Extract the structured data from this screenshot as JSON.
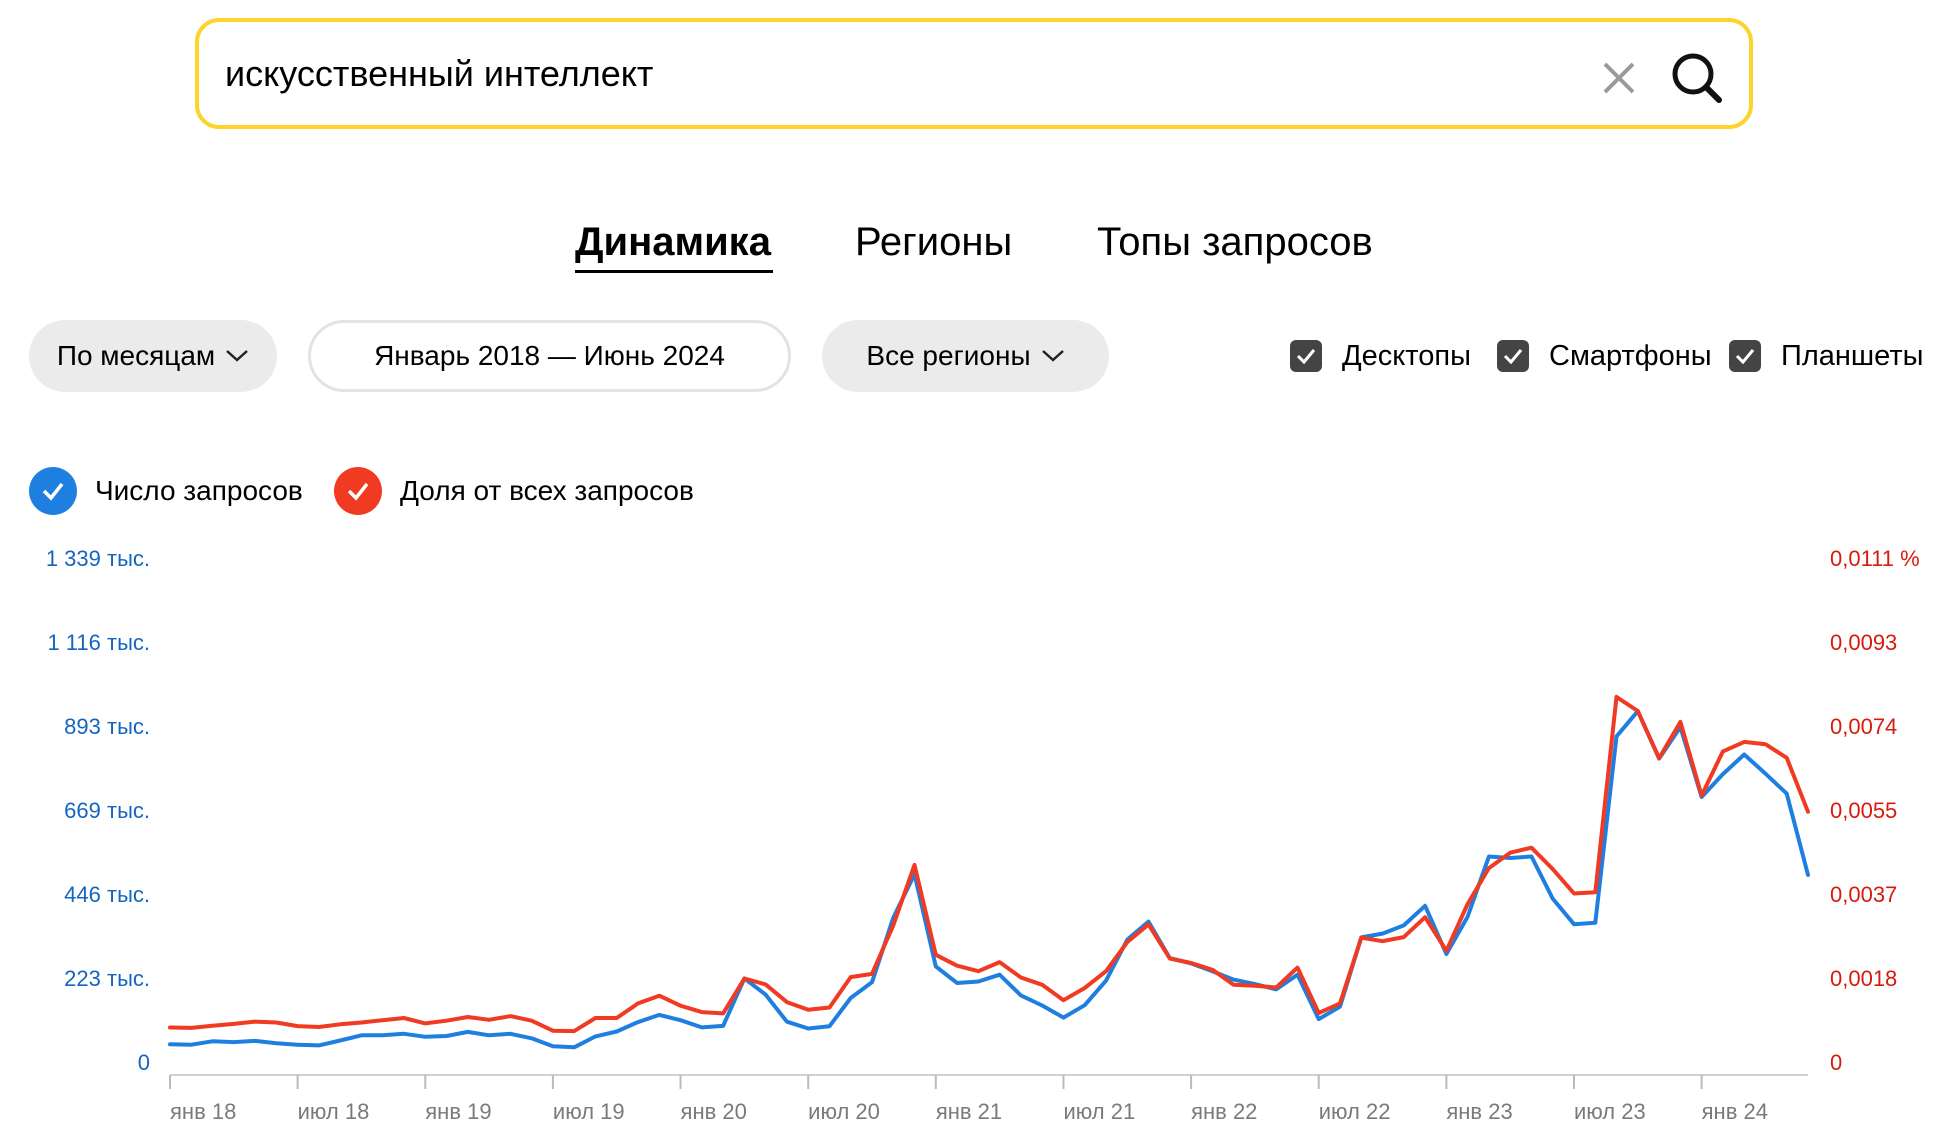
{
  "search": {
    "query": "искусственный интеллект"
  },
  "tabs": [
    {
      "label": "Динамика",
      "active": true
    },
    {
      "label": "Регионы",
      "active": false
    },
    {
      "label": "Топы запросов",
      "active": false
    }
  ],
  "filters": {
    "period": "По месяцам",
    "date_range": "Январь 2018 — Июнь 2024",
    "region": "Все регионы"
  },
  "devices": [
    {
      "label": "Десктопы",
      "checked": true
    },
    {
      "label": "Смартфоны",
      "checked": true
    },
    {
      "label": "Планшеты",
      "checked": true
    }
  ],
  "legend": [
    {
      "label": "Число запросов",
      "color": "#1f7fe0",
      "checked": true
    },
    {
      "label": "Доля от всех запросов",
      "color": "#f03a21",
      "checked": true
    }
  ],
  "icons": {
    "clear": "close-icon",
    "search": "search-icon",
    "dropdown": "chevron-down-icon",
    "check": "check-icon"
  },
  "colors": {
    "accent_yellow": "#fed42b",
    "blue": "#1f7fe0",
    "red": "#f03a21",
    "axis_blue": "#1565c0",
    "axis_red": "#d81b0c"
  },
  "chart_data": {
    "type": "line",
    "left_axis_ticks": [
      "0",
      "223 тыс.",
      "446 тыс.",
      "669 тыс.",
      "893 тыс.",
      "1 116 тыс.",
      "1 339 тыс."
    ],
    "right_axis_ticks": [
      "0",
      "0,0018",
      "0,0037",
      "0,0055",
      "0,0074",
      "0,0093",
      "0,0111 %"
    ],
    "left_ylim": [
      0,
      1339000
    ],
    "right_ylim": [
      0,
      0.0111
    ],
    "x_tick_labels": [
      "янв 18",
      "июл 18",
      "янв 19",
      "июл 19",
      "янв 20",
      "июл 20",
      "янв 21",
      "июл 21",
      "янв 22",
      "июл 22",
      "янв 23",
      "июл 23",
      "янв 24"
    ],
    "x_period": "2018-01 .. 2024-06 (monthly)",
    "series": [
      {
        "name": "Число запросов",
        "axis": "left",
        "color": "#1f7fe0",
        "values": [
          47000,
          46000,
          55000,
          53000,
          56000,
          50000,
          46000,
          44000,
          57000,
          71000,
          71000,
          75000,
          67000,
          69000,
          80000,
          71000,
          75000,
          63000,
          42000,
          39000,
          68000,
          81000,
          106000,
          125000,
          111000,
          92000,
          96000,
          222000,
          179000,
          107000,
          89000,
          95000,
          170000,
          212000,
          383000,
          499000,
          254000,
          210000,
          214000,
          232000,
          177000,
          150000,
          118000,
          151000,
          216000,
          325000,
          373000,
          276000,
          262000,
          241000,
          219000,
          207000,
          193000,
          232000,
          114000,
          147000,
          331000,
          341000,
          363000,
          415000,
          287000,
          386000,
          546000,
          542000,
          546000,
          434000,
          366000,
          370000,
          865000,
          932000,
          806000,
          890000,
          704000,
          765000,
          817000,
          766000,
          713000,
          497000
        ]
      },
      {
        "name": "Доля от всех запросов",
        "axis": "right",
        "color": "#f03a21",
        "values": [
          0.00076,
          0.00075,
          0.0008,
          0.00084,
          0.00089,
          0.00087,
          0.00079,
          0.00077,
          0.00083,
          0.00087,
          0.00092,
          0.00097,
          0.00085,
          0.00091,
          0.00099,
          0.00093,
          0.00101,
          0.00091,
          0.00069,
          0.00068,
          0.00097,
          0.00097,
          0.00129,
          0.00146,
          0.00124,
          0.0011,
          0.00107,
          0.00184,
          0.00171,
          0.00132,
          0.00115,
          0.0012,
          0.00187,
          0.00194,
          0.00301,
          0.00434,
          0.00236,
          0.00212,
          0.002,
          0.0022,
          0.00186,
          0.0017,
          0.00136,
          0.00163,
          0.002,
          0.00264,
          0.00303,
          0.00228,
          0.00218,
          0.00203,
          0.0017,
          0.00168,
          0.00164,
          0.00208,
          0.00108,
          0.00129,
          0.00274,
          0.00266,
          0.00275,
          0.00319,
          0.00245,
          0.00348,
          0.00427,
          0.00461,
          0.00472,
          0.00425,
          0.00371,
          0.00374,
          0.00804,
          0.00773,
          0.00669,
          0.00749,
          0.00587,
          0.00684,
          0.00705,
          0.007,
          0.0067,
          0.00551
        ]
      }
    ]
  }
}
